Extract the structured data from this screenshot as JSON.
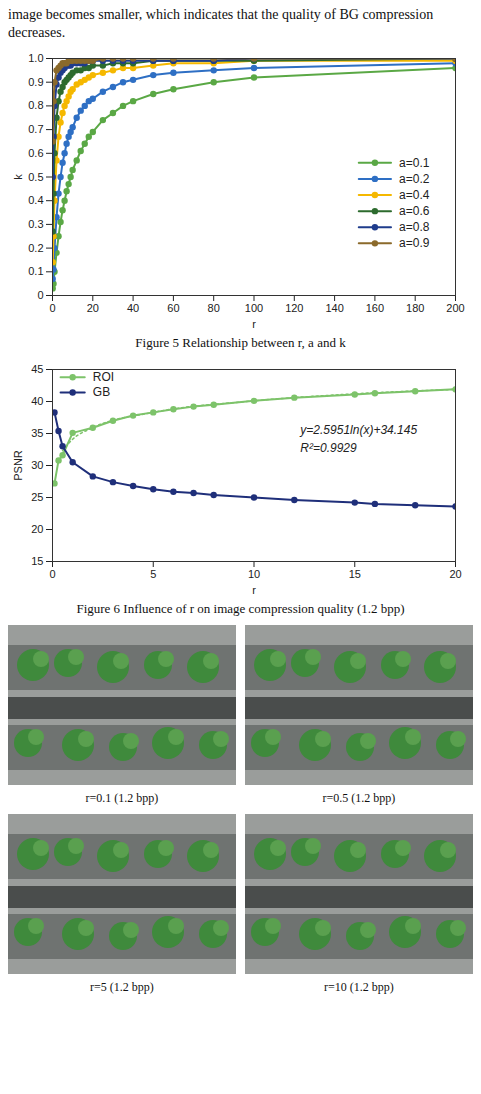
{
  "paragraph": "image becomes smaller, which indicates that the quality of BG compression decreases.",
  "chart_data": [
    {
      "type": "line",
      "caption": "Figure 5    Relationship between r, a and k",
      "x_label": "r",
      "y_label": "k",
      "xlim": [
        0,
        200
      ],
      "xticks": [
        0,
        20,
        40,
        60,
        80,
        100,
        120,
        140,
        160,
        180,
        200
      ],
      "ylim": [
        0,
        1
      ],
      "yticks": [
        0,
        0.1,
        0.2,
        0.3,
        0.4,
        0.5,
        0.6,
        0.7,
        0.8,
        0.9,
        {
          "value": 1,
          "label": "1.0"
        }
      ],
      "legend": "right",
      "marker": "circle",
      "x": [
        0.1,
        0.5,
        1,
        2,
        3,
        4,
        5,
        6,
        7,
        8,
        9,
        10,
        12,
        14,
        16,
        18,
        20,
        25,
        30,
        35,
        40,
        50,
        60,
        80,
        100,
        200
      ],
      "series": [
        {
          "name": "a=0.1",
          "color": "#5aa845",
          "values": [
            0.03,
            0.05,
            0.1,
            0.18,
            0.25,
            0.31,
            0.36,
            0.4,
            0.44,
            0.47,
            0.5,
            0.53,
            0.57,
            0.61,
            0.64,
            0.67,
            0.69,
            0.74,
            0.77,
            0.8,
            0.82,
            0.85,
            0.87,
            0.9,
            0.92,
            0.96
          ]
        },
        {
          "name": "a=0.2",
          "color": "#2e6fc4",
          "values": [
            0.07,
            0.11,
            0.2,
            0.33,
            0.43,
            0.5,
            0.56,
            0.6,
            0.64,
            0.67,
            0.69,
            0.71,
            0.75,
            0.78,
            0.8,
            0.82,
            0.83,
            0.86,
            0.88,
            0.9,
            0.91,
            0.93,
            0.94,
            0.95,
            0.96,
            0.98
          ]
        },
        {
          "name": "a=0.4",
          "color": "#f5b800",
          "values": [
            0.14,
            0.25,
            0.4,
            0.57,
            0.67,
            0.73,
            0.77,
            0.8,
            0.82,
            0.84,
            0.86,
            0.87,
            0.89,
            0.9,
            0.91,
            0.92,
            0.93,
            0.94,
            0.95,
            0.96,
            0.96,
            0.97,
            0.98,
            0.98,
            0.99,
            0.99
          ]
        },
        {
          "name": "a=0.6",
          "color": "#2d6b2e",
          "values": [
            0.27,
            0.43,
            0.6,
            0.75,
            0.82,
            0.86,
            0.88,
            0.9,
            0.91,
            0.92,
            0.93,
            0.94,
            0.95,
            0.95,
            0.96,
            0.96,
            0.97,
            0.97,
            0.98,
            0.98,
            0.98,
            0.99,
            0.99,
            0.99,
            0.99,
            1
          ]
        },
        {
          "name": "a=0.8",
          "color": "#1f3c8c",
          "values": [
            0.5,
            0.67,
            0.8,
            0.89,
            0.92,
            0.94,
            0.95,
            0.96,
            0.97,
            0.97,
            0.97,
            0.98,
            0.98,
            0.98,
            0.98,
            0.99,
            0.99,
            0.99,
            0.99,
            0.99,
            0.99,
            0.99,
            0.99,
            0.99,
            1,
            1
          ]
        },
        {
          "name": "a=0.9",
          "color": "#8b6a2b",
          "values": [
            0.65,
            0.82,
            0.9,
            0.95,
            0.96,
            0.97,
            0.98,
            0.98,
            0.98,
            0.99,
            0.99,
            0.99,
            0.99,
            0.99,
            0.99,
            0.99,
            0.99,
            1,
            1,
            1,
            1,
            1,
            1,
            1,
            1,
            1
          ]
        }
      ]
    },
    {
      "type": "line",
      "caption": "Figure 6    Influence of r on image compression quality (1.2 bpp)",
      "x_label": "r",
      "y_label": "PSNR",
      "xlim": [
        0,
        20
      ],
      "xticks": [
        0,
        5,
        10,
        15,
        20
      ],
      "ylim": [
        15,
        45
      ],
      "yticks": [
        15,
        20,
        25,
        30,
        35,
        40,
        45
      ],
      "legend": "top-left",
      "marker": "circle",
      "annotations": [
        "y=2.5951ln(x)+34.145",
        "R²=0.9929"
      ],
      "x": [
        0.1,
        0.3,
        0.5,
        1,
        2,
        3,
        4,
        5,
        6,
        7,
        8,
        10,
        12,
        15,
        16,
        18,
        20
      ],
      "series": [
        {
          "name": "ROI",
          "color": "#7dc36a",
          "values": [
            27.2,
            30.8,
            31.6,
            35.1,
            35.9,
            37.0,
            37.8,
            38.3,
            38.8,
            39.2,
            39.5,
            40.1,
            40.6,
            41.1,
            41.3,
            41.6,
            41.9
          ],
          "trend": {
            "x": [
              0.5,
              1,
              2,
              5,
              10,
              15,
              20
            ],
            "values": [
              32.3,
              34.1,
              35.9,
              38.3,
              40.1,
              41.2,
              41.9
            ],
            "line_style": "dotted"
          }
        },
        {
          "name": "GB",
          "color": "#1f2f7a",
          "values": [
            38.3,
            35.4,
            33.0,
            30.5,
            28.3,
            27.4,
            26.8,
            26.3,
            25.9,
            25.7,
            25.4,
            25.0,
            24.6,
            24.2,
            24.0,
            23.8,
            23.6
          ]
        }
      ]
    }
  ],
  "photos": [
    {
      "caption": "r=0.1 (1.2 bpp)"
    },
    {
      "caption": "r=0.5 (1.2 bpp)"
    },
    {
      "caption": "r=5 (1.2 bpp)"
    },
    {
      "caption": "r=10 (1.2 bpp)"
    }
  ]
}
